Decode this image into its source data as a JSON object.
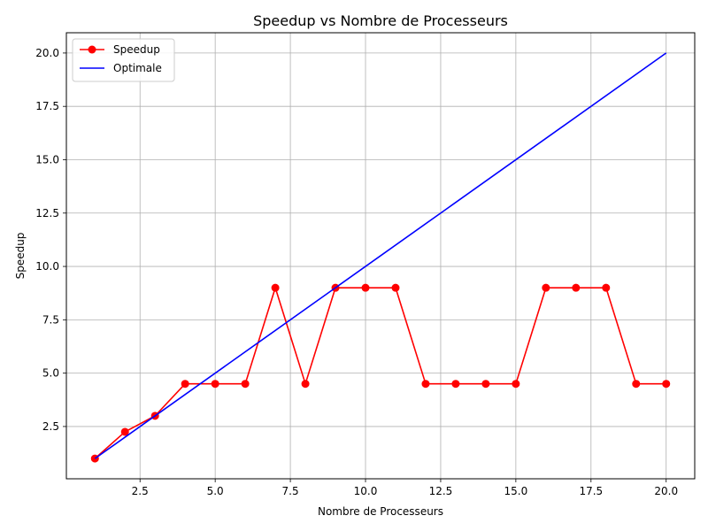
{
  "chart_data": {
    "type": "line",
    "title": "Speedup vs Nombre de Processeurs",
    "xlabel": "Nombre de Processeurs",
    "ylabel": "Speedup",
    "xlim": [
      0.05,
      20.95
    ],
    "ylim": [
      0.05,
      20.95
    ],
    "x_ticks": [
      2.5,
      5.0,
      7.5,
      10.0,
      12.5,
      15.0,
      17.5,
      20.0
    ],
    "y_ticks": [
      2.5,
      5.0,
      7.5,
      10.0,
      12.5,
      15.0,
      17.5,
      20.0
    ],
    "grid": true,
    "legend_position": "top-left",
    "series": [
      {
        "name": "Speedup",
        "color": "#ff0000",
        "marker": "circle",
        "x": [
          1,
          2,
          3,
          4,
          5,
          6,
          7,
          8,
          9,
          10,
          11,
          12,
          13,
          14,
          15,
          16,
          17,
          18,
          19,
          20
        ],
        "y": [
          1.0,
          2.25,
          3.0,
          4.5,
          4.5,
          4.5,
          9.0,
          4.5,
          9.0,
          9.0,
          9.0,
          4.5,
          4.5,
          4.5,
          4.5,
          9.0,
          9.0,
          9.0,
          4.5,
          4.5
        ]
      },
      {
        "name": "Optimale",
        "color": "#0000ff",
        "marker": "none",
        "x": [
          1,
          20
        ],
        "y": [
          1,
          20
        ]
      }
    ]
  }
}
